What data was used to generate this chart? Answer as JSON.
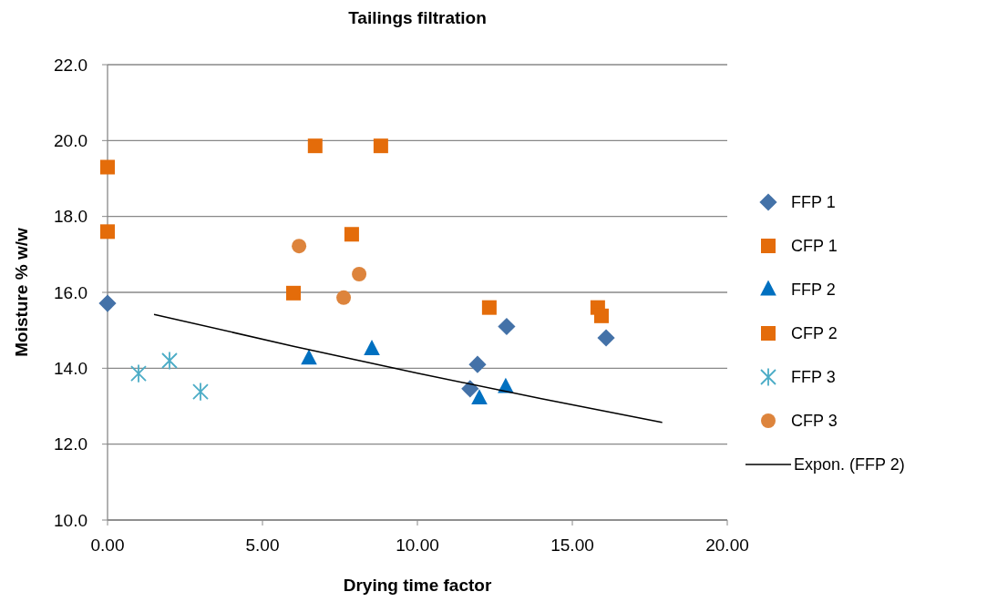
{
  "chart_data": {
    "type": "scatter",
    "title": "Tailings filtration",
    "xlabel": "Drying time factor",
    "ylabel": "Moisture % w/w",
    "xlim": [
      0,
      20
    ],
    "ylim": [
      10,
      22
    ],
    "xticks": [
      {
        "value": 0,
        "label": "0.00"
      },
      {
        "value": 5,
        "label": "5.00"
      },
      {
        "value": 10,
        "label": "10.00"
      },
      {
        "value": 15,
        "label": "15.00"
      },
      {
        "value": 20,
        "label": "20.00"
      }
    ],
    "yticks": [
      {
        "value": 10,
        "label": "10.0"
      },
      {
        "value": 12,
        "label": "12.0"
      },
      {
        "value": 14,
        "label": "14.0"
      },
      {
        "value": 16,
        "label": "16.0"
      },
      {
        "value": 18,
        "label": "18.0"
      },
      {
        "value": 20,
        "label": "20.0"
      },
      {
        "value": 22,
        "label": "22.0"
      }
    ],
    "grid": "y",
    "legend": "right",
    "series": [
      {
        "name": "FFP 1",
        "color": "#4472a8",
        "marker": "diamond",
        "x": [
          0,
          11.7,
          11.94,
          12.88,
          16.09
        ],
        "values": [
          15.71,
          13.46,
          14.1,
          15.1,
          14.8
        ]
      },
      {
        "name": "CFP 1",
        "color": "#e46c0a",
        "marker": "square",
        "x": [
          0,
          15.82,
          15.94
        ],
        "values": [
          17.6,
          15.6,
          15.38
        ]
      },
      {
        "name": "FFP 2",
        "color": "#0070c0",
        "marker": "triangle",
        "x": [
          6.5,
          8.53,
          12.0,
          12.85
        ],
        "values": [
          14.25,
          14.5,
          13.2,
          13.5
        ]
      },
      {
        "name": "CFP 2",
        "color": "#e46c0a",
        "marker": "square",
        "x": [
          0,
          6.7,
          8.82,
          7.88,
          6.0,
          12.32
        ],
        "values": [
          19.3,
          19.86,
          19.86,
          17.53,
          15.98,
          15.6
        ]
      },
      {
        "name": "FFP 3",
        "color": "#4bacc6",
        "marker": "cross",
        "x": [
          1.0,
          2.0,
          3.0
        ],
        "values": [
          13.86,
          14.2,
          13.38
        ]
      },
      {
        "name": "CFP 3",
        "color": "#dd843c",
        "marker": "circle",
        "x": [
          6.18,
          8.12,
          7.62
        ],
        "values": [
          17.22,
          16.48,
          15.86
        ]
      },
      {
        "name": "Expon. (FFP 2)",
        "type": "line",
        "color": "#000000",
        "marker": "none",
        "x": [
          1.5,
          6,
          10,
          14,
          17.9
        ],
        "values": [
          15.42,
          14.58,
          13.87,
          13.2,
          12.57
        ]
      }
    ]
  }
}
